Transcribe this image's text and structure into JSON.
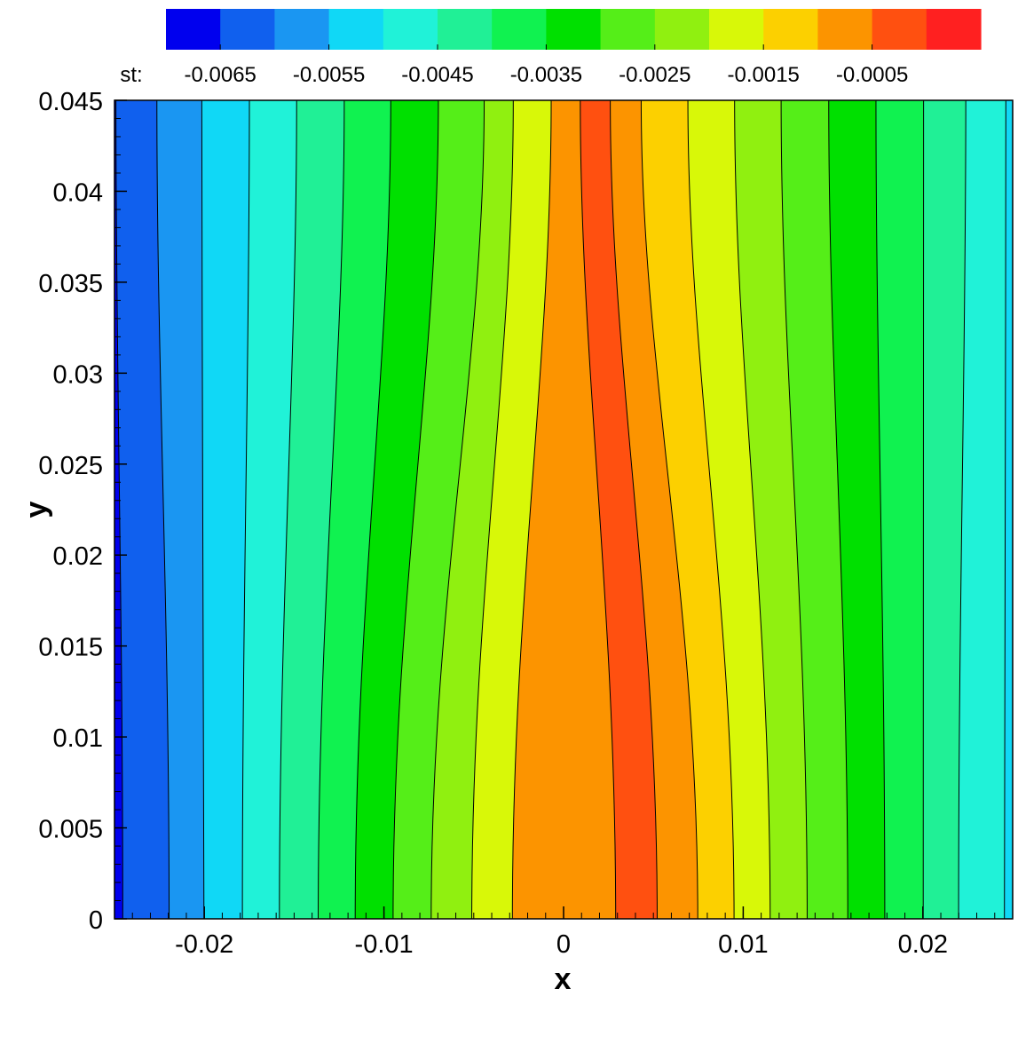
{
  "chart_data": {
    "type": "heatmap",
    "subtype": "filled-contour",
    "variable": "st",
    "xlabel": "x",
    "ylabel": "y",
    "xlim": [
      -0.025,
      0.025
    ],
    "ylim": [
      0,
      0.045
    ],
    "x_ticks": [
      {
        "value": -0.02,
        "label": "-0.02"
      },
      {
        "value": -0.01,
        "label": "-0.01"
      },
      {
        "value": 0,
        "label": "0"
      },
      {
        "value": 0.01,
        "label": "0.01"
      },
      {
        "value": 0.02,
        "label": "0.02"
      }
    ],
    "y_ticks": [
      {
        "value": 0,
        "label": "0"
      },
      {
        "value": 0.005,
        "label": "0.005"
      },
      {
        "value": 0.01,
        "label": "0.01"
      },
      {
        "value": 0.015,
        "label": "0.015"
      },
      {
        "value": 0.02,
        "label": "0.02"
      },
      {
        "value": 0.025,
        "label": "0.025"
      },
      {
        "value": 0.03,
        "label": "0.03"
      },
      {
        "value": 0.035,
        "label": "0.035"
      },
      {
        "value": 0.04,
        "label": "0.04"
      },
      {
        "value": 0.045,
        "label": "0.045"
      }
    ],
    "legend": {
      "label": "st:",
      "placement": "top",
      "orientation": "horizontal",
      "tick_labels": [
        "-0.0065",
        "-0.0055",
        "-0.0045",
        "-0.0035",
        "-0.0025",
        "-0.0015",
        "-0.0005"
      ],
      "levels": [
        -0.007,
        -0.0065,
        -0.006,
        -0.0055,
        -0.005,
        -0.0045,
        -0.004,
        -0.0035,
        -0.003,
        -0.0025,
        -0.002,
        -0.0015,
        -0.001,
        -0.0005,
        0
      ],
      "colors": [
        "#0000ee",
        "#1060ee",
        "#1a96f2",
        "#10d8f6",
        "#20f2d8",
        "#20f096",
        "#10f250",
        "#00e000",
        "#55ee18",
        "#90f010",
        "#d8f808",
        "#fcd000",
        "#fc9400",
        "#ff5010",
        "#ff2020"
      ]
    },
    "contour_lines": [
      {
        "level": -0.0065,
        "x_at_y0": -0.02454,
        "x_at_ymax": -0.02492
      },
      {
        "level": -0.006,
        "x_at_y0": -0.02196,
        "x_at_ymax": -0.02264
      },
      {
        "level": -0.0055,
        "x_at_y0": -0.02002,
        "x_at_ymax": -0.02014
      },
      {
        "level": -0.005,
        "x_at_y0": -0.01788,
        "x_at_ymax": -0.01749
      },
      {
        "level": -0.0045,
        "x_at_y0": -0.01582,
        "x_at_ymax": -0.01486
      },
      {
        "level": -0.004,
        "x_at_y0": -0.01366,
        "x_at_ymax": -0.01221
      },
      {
        "level": -0.0035,
        "x_at_y0": -0.0116,
        "x_at_ymax": -0.00962
      },
      {
        "level": -0.003,
        "x_at_y0": -0.00949,
        "x_at_ymax": -0.00697
      },
      {
        "level": -0.0025,
        "x_at_y0": -0.00737,
        "x_at_ymax": -0.00442
      },
      {
        "level": -0.002,
        "x_at_y0": -0.00511,
        "x_at_ymax": -0.0028
      },
      {
        "level": -0.0015,
        "x_at_y0": -0.00285,
        "x_at_ymax": -0.00069
      },
      {
        "level": -0.001,
        "x_at_y0": 0.0029,
        "x_at_ymax": 0.00093
      },
      {
        "level": -0.0015,
        "x_at_y0": 0.00521,
        "x_at_ymax": 0.0026
      },
      {
        "level": -0.002,
        "x_at_y0": 0.00747,
        "x_at_ymax": 0.00432
      },
      {
        "level": -0.0025,
        "x_at_y0": 0.00949,
        "x_at_ymax": 0.00692
      },
      {
        "level": -0.003,
        "x_at_y0": 0.0115,
        "x_at_ymax": 0.00952
      },
      {
        "level": -0.0035,
        "x_at_y0": 0.01356,
        "x_at_ymax": 0.01211
      },
      {
        "level": -0.004,
        "x_at_y0": 0.01582,
        "x_at_ymax": 0.01476
      },
      {
        "level": -0.0045,
        "x_at_y0": 0.01788,
        "x_at_ymax": 0.01739
      },
      {
        "level": -0.005,
        "x_at_y0": 0.02002,
        "x_at_ymax": 0.02004
      },
      {
        "level": -0.0055,
        "x_at_y0": 0.02199,
        "x_at_ymax": 0.02239
      },
      {
        "level": -0.006,
        "x_at_y0": 0.02454,
        "x_at_ymax": 0.02462
      }
    ],
    "bands": [
      {
        "level_index": 0,
        "from": "xmin",
        "to": 0
      },
      {
        "level_index": 1,
        "from": 0,
        "to": 1
      },
      {
        "level_index": 2,
        "from": 1,
        "to": 2
      },
      {
        "level_index": 3,
        "from": 2,
        "to": 3
      },
      {
        "level_index": 4,
        "from": 3,
        "to": 4
      },
      {
        "level_index": 5,
        "from": 4,
        "to": 5
      },
      {
        "level_index": 6,
        "from": 5,
        "to": 6
      },
      {
        "level_index": 7,
        "from": 6,
        "to": 7
      },
      {
        "level_index": 8,
        "from": 7,
        "to": 8
      },
      {
        "level_index": 9,
        "from": 8,
        "to": 9
      },
      {
        "level_index": 10,
        "from": 9,
        "to": 10
      },
      {
        "level_index": 12,
        "from": 10,
        "to": 11
      },
      {
        "level_index": 13,
        "from": 11,
        "to": 12
      },
      {
        "level_index": 12,
        "from": 12,
        "to": 13
      },
      {
        "level_index": 11,
        "from": 13,
        "to": 14
      },
      {
        "level_index": 10,
        "from": 14,
        "to": 15
      },
      {
        "level_index": 9,
        "from": 15,
        "to": 16
      },
      {
        "level_index": 8,
        "from": 16,
        "to": 17
      },
      {
        "level_index": 7,
        "from": 17,
        "to": 18
      },
      {
        "level_index": 6,
        "from": 18,
        "to": 19
      },
      {
        "level_index": 5,
        "from": 19,
        "to": 20
      },
      {
        "level_index": 4,
        "from": 20,
        "to": 21
      },
      {
        "level_index": 3,
        "from": 21,
        "to": "xmax"
      }
    ],
    "grid": false
  }
}
